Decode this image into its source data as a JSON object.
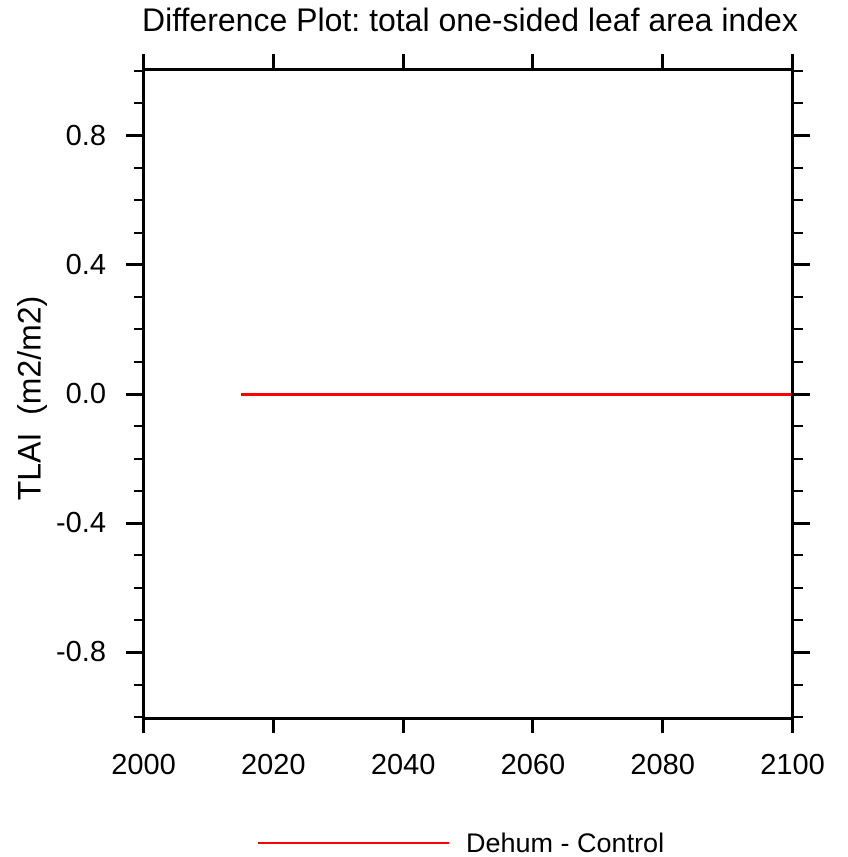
{
  "chart_data": {
    "type": "line",
    "title": "Difference Plot: total one-sided leaf area index",
    "xlabel": "",
    "ylabel": "TLAI  (m2/m2)",
    "xlim": [
      2000,
      2100
    ],
    "ylim": [
      -1.005,
      1.005
    ],
    "xticks": {
      "values": [
        2000,
        2020,
        2040,
        2060,
        2080,
        2100
      ],
      "labels": [
        "2000",
        "2020",
        "2040",
        "2060",
        "2080",
        "2100"
      ]
    },
    "yticks": {
      "values": [
        0.8,
        0.4,
        0.0,
        -0.4,
        -0.8
      ],
      "labels": [
        "0.8",
        "0.4",
        "0.0",
        "-0.4",
        "-0.8"
      ]
    },
    "y_minor_tick_step": 0.1,
    "x_minor_ticks": false,
    "grid": false,
    "tick_style": "outward-all-four-sides",
    "axis_color": "#000000",
    "background_color": "#ffffff",
    "legend_position": "bottom-center",
    "series": [
      {
        "name": "Dehum - Control",
        "color": "#ff0000",
        "line_width": 3,
        "x": [
          2015,
          2100
        ],
        "y": [
          0.0,
          0.0
        ]
      }
    ]
  }
}
